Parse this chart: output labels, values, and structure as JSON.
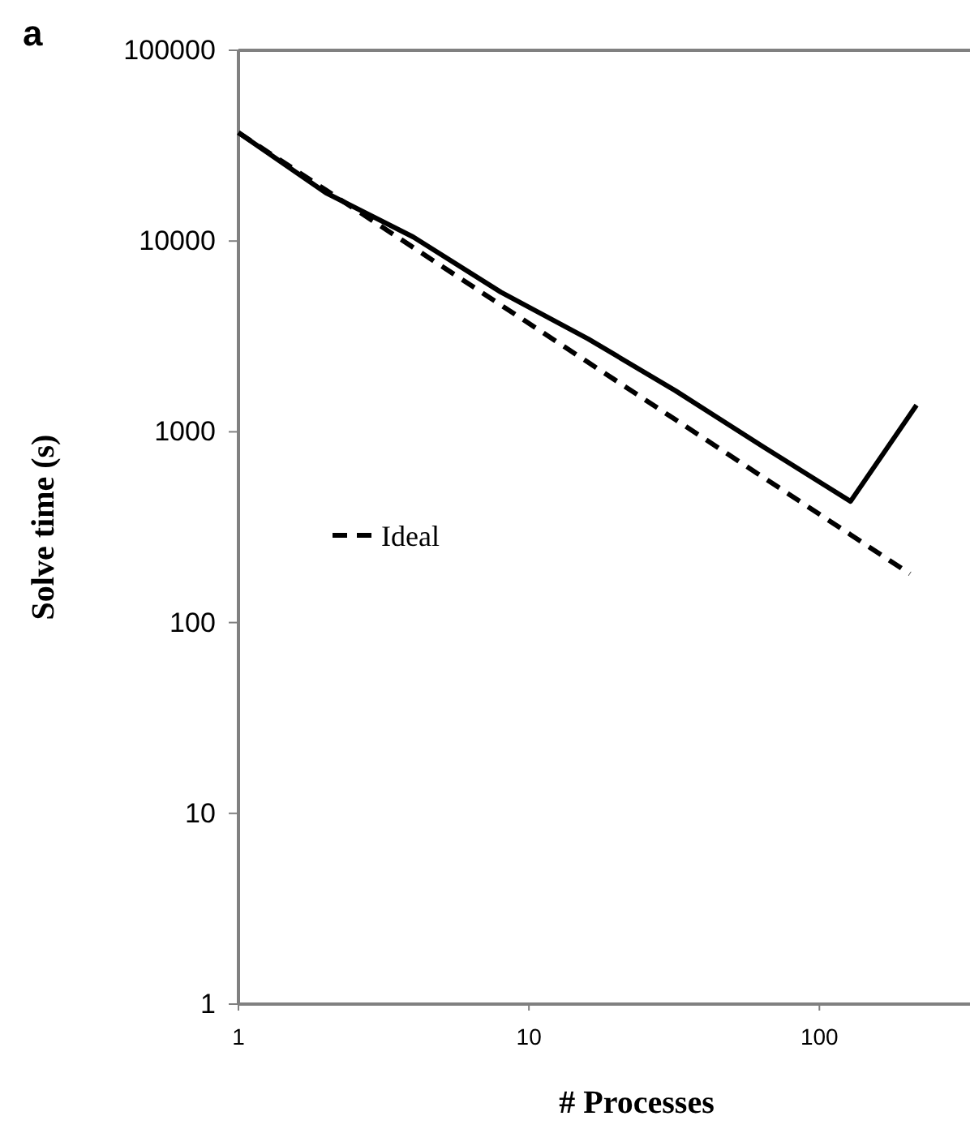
{
  "chart_data": {
    "type": "line",
    "title": "a",
    "xlabel": "# Processes",
    "ylabel": "Solve time (s)",
    "log": "xy",
    "xlim": [
      1,
      330
    ],
    "ylim": [
      1,
      100000
    ],
    "xticks": [
      1,
      10,
      100
    ],
    "yticks": [
      1,
      10,
      100,
      1000,
      10000,
      100000
    ],
    "grid": false,
    "legend": "left",
    "marker": "none",
    "series": [
      {
        "name": "Ideal",
        "color": "#000000",
        "line_style": "dashed",
        "x": [
          1,
          2,
          4,
          8,
          16,
          32,
          64,
          128,
          205
        ],
        "values": [
          37000,
          18500,
          9250,
          4625,
          2312,
          1156,
          578,
          289,
          180
        ]
      },
      {
        "color": "#000000",
        "line_style": "solid",
        "x": [
          1,
          2,
          4,
          8,
          16,
          32,
          64,
          128,
          216
        ],
        "values": [
          37000,
          17900,
          10500,
          5400,
          3070,
          1640,
          835,
          432,
          1380
        ]
      }
    ]
  }
}
